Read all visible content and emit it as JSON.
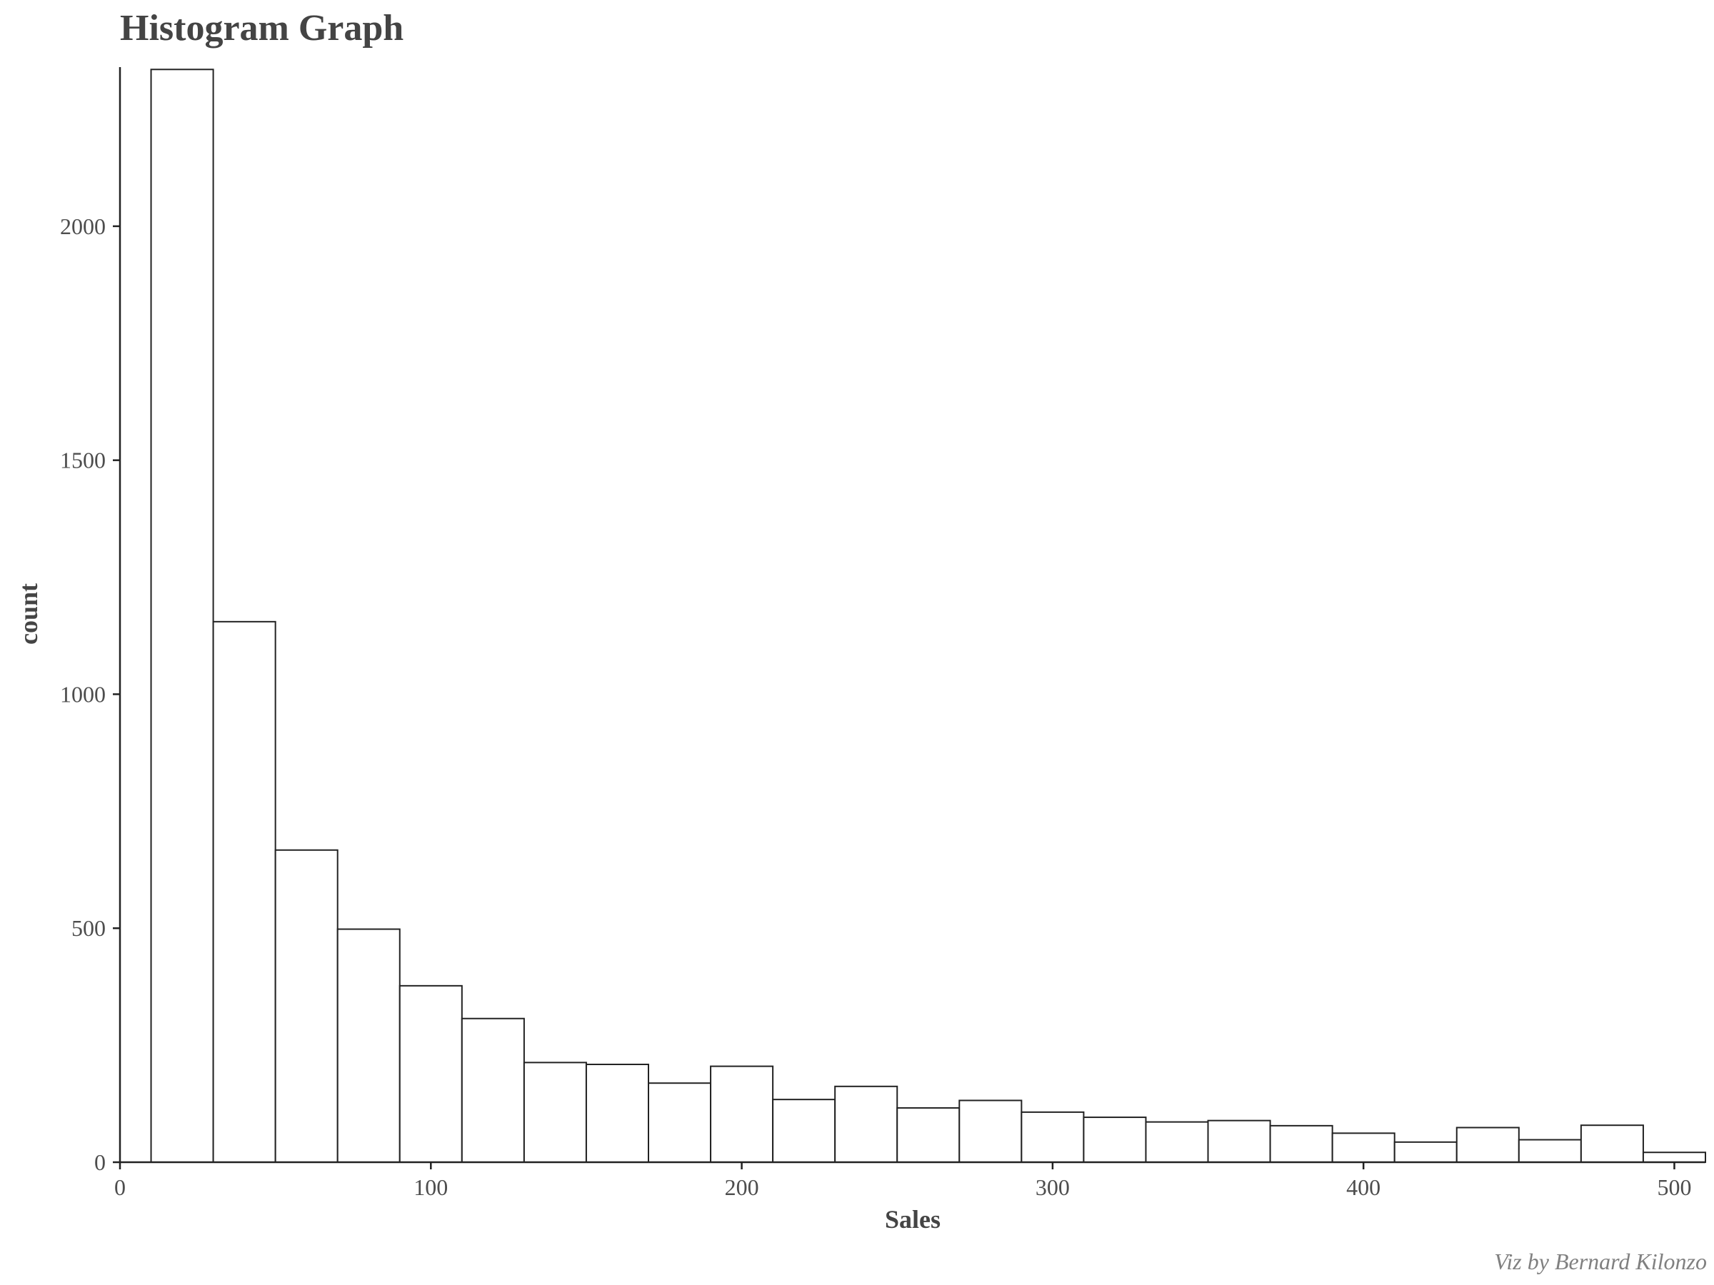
{
  "chart_data": {
    "type": "bar",
    "title": "Histogram Graph",
    "xlabel": "Sales",
    "ylabel": "count",
    "caption": "Viz by Bernard Kilonzo",
    "xlim": [
      0,
      510
    ],
    "ylim": [
      0,
      2340
    ],
    "x_ticks": [
      0,
      100,
      200,
      300,
      400,
      500
    ],
    "y_ticks": [
      0,
      500,
      1000,
      1500,
      2000
    ],
    "grid": false,
    "bin_width": 20,
    "bins": [
      {
        "x_start": 10,
        "x_end": 30,
        "count": 2335
      },
      {
        "x_start": 30,
        "x_end": 50,
        "count": 1155
      },
      {
        "x_start": 50,
        "x_end": 70,
        "count": 667
      },
      {
        "x_start": 70,
        "x_end": 90,
        "count": 498
      },
      {
        "x_start": 90,
        "x_end": 110,
        "count": 377
      },
      {
        "x_start": 110,
        "x_end": 130,
        "count": 307
      },
      {
        "x_start": 130,
        "x_end": 150,
        "count": 213
      },
      {
        "x_start": 150,
        "x_end": 170,
        "count": 209
      },
      {
        "x_start": 170,
        "x_end": 190,
        "count": 169
      },
      {
        "x_start": 190,
        "x_end": 210,
        "count": 205
      },
      {
        "x_start": 210,
        "x_end": 230,
        "count": 134
      },
      {
        "x_start": 230,
        "x_end": 250,
        "count": 162
      },
      {
        "x_start": 250,
        "x_end": 270,
        "count": 116
      },
      {
        "x_start": 270,
        "x_end": 290,
        "count": 132
      },
      {
        "x_start": 290,
        "x_end": 310,
        "count": 107
      },
      {
        "x_start": 310,
        "x_end": 330,
        "count": 96
      },
      {
        "x_start": 330,
        "x_end": 350,
        "count": 86
      },
      {
        "x_start": 350,
        "x_end": 370,
        "count": 89
      },
      {
        "x_start": 370,
        "x_end": 390,
        "count": 78
      },
      {
        "x_start": 390,
        "x_end": 410,
        "count": 62
      },
      {
        "x_start": 410,
        "x_end": 430,
        "count": 43
      },
      {
        "x_start": 430,
        "x_end": 450,
        "count": 74
      },
      {
        "x_start": 450,
        "x_end": 470,
        "count": 48
      },
      {
        "x_start": 470,
        "x_end": 490,
        "count": 79
      },
      {
        "x_start": 490,
        "x_end": 510,
        "count": 21
      }
    ]
  }
}
